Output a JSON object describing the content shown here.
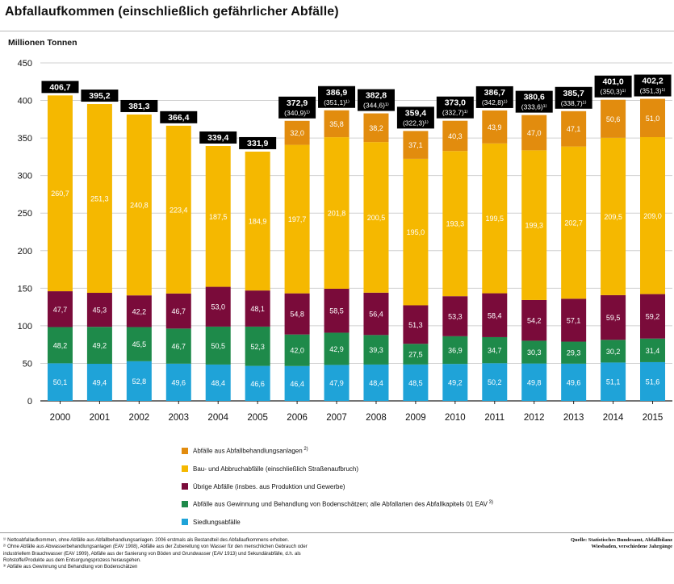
{
  "title": "Abfallaufkommen (einschließlich gefährlicher Abfälle)",
  "colors": {
    "siedlung": "#1fa3d8",
    "gewinnung": "#1e8a4a",
    "uebrige": "#7a0b3a",
    "bau": "#f5b800",
    "behandlung": "#e28c0e",
    "total_box": "#000000",
    "grid": "#d0d0d0"
  },
  "chart_data": {
    "type": "bar",
    "stacked": true,
    "ylabel": "Millionen Tonnen",
    "ylim": [
      0,
      450
    ],
    "yticks": [
      0,
      50,
      100,
      150,
      200,
      250,
      300,
      350,
      400,
      450
    ],
    "grid": true,
    "categories": [
      "2000",
      "2001",
      "2002",
      "2003",
      "2004",
      "2005",
      "2006",
      "2007",
      "2008",
      "2009",
      "2010",
      "2011",
      "2012",
      "2013",
      "2014",
      "2015"
    ],
    "series": [
      {
        "name": "Siedlungsabfälle",
        "color_key": "siedlung",
        "values": [
          50.1,
          49.4,
          52.8,
          49.6,
          48.4,
          46.6,
          46.4,
          47.9,
          48.4,
          48.5,
          49.2,
          50.2,
          49.8,
          49.6,
          51.1,
          51.6
        ],
        "labels": [
          "50,1",
          "49,4",
          "52,8",
          "49,6",
          "48,4",
          "46,6",
          "46,4",
          "47,9",
          "48,4",
          "48,5",
          "49,2",
          "50,2",
          "49,8",
          "49,6",
          "51,1",
          "51,6"
        ]
      },
      {
        "name": "Abfälle aus Gewinnung und Behandlung von Bodenschätzen; alle Abfallarten des Abfallkapitels 01 EAV",
        "color_key": "gewinnung",
        "values": [
          48.2,
          49.2,
          45.5,
          46.7,
          50.5,
          52.3,
          42.0,
          42.9,
          39.3,
          27.5,
          36.9,
          34.7,
          30.3,
          29.3,
          30.2,
          31.4
        ],
        "labels": [
          "48,2",
          "49,2",
          "45,5",
          "46,7",
          "50,5",
          "52,3",
          "42,0",
          "42,9",
          "39,3",
          "27,5",
          "36,9",
          "34,7",
          "30,3",
          "29,3",
          "30,2",
          "31,4"
        ]
      },
      {
        "name": "Übrige Abfälle (insbes. aus Produktion und Gewerbe)",
        "color_key": "uebrige",
        "values": [
          47.7,
          45.3,
          42.2,
          46.7,
          53.0,
          48.1,
          54.8,
          58.5,
          56.4,
          51.3,
          53.3,
          58.4,
          54.2,
          57.1,
          59.5,
          59.2
        ],
        "labels": [
          "47,7",
          "45,3",
          "42,2",
          "46,7",
          "53,0",
          "48,1",
          "54,8",
          "58,5",
          "56,4",
          "51,3",
          "53,3",
          "58,4",
          "54,2",
          "57,1",
          "59,5",
          "59,2"
        ]
      },
      {
        "name": "Bau- und Abbruchabfälle (einschließlich Straßenaufbruch)",
        "color_key": "bau",
        "values": [
          260.7,
          251.3,
          240.8,
          223.4,
          187.5,
          184.9,
          197.7,
          201.8,
          200.5,
          195.0,
          193.3,
          199.5,
          199.3,
          202.7,
          209.5,
          209.0
        ],
        "labels": [
          "260,7",
          "251,3",
          "240,8",
          "223,4",
          "187,5",
          "184,9",
          "197,7",
          "201,8",
          "200,5",
          "195,0",
          "193,3",
          "199,5",
          "199,3",
          "202,7",
          "209,5",
          "209,0"
        ]
      },
      {
        "name": "Abfälle aus Abfallbehandlungsanlagen",
        "color_key": "behandlung",
        "values": [
          0,
          0,
          0,
          0,
          0,
          0,
          32.0,
          35.8,
          38.2,
          37.1,
          40.3,
          43.9,
          47.0,
          47.1,
          50.6,
          51.0
        ],
        "labels": [
          "",
          "",
          "",
          "",
          "",
          "",
          "32,0",
          "35,8",
          "38,2",
          "37,1",
          "40,3",
          "43,9",
          "47,0",
          "47,1",
          "50,6",
          "51,0"
        ]
      }
    ],
    "totals": [
      406.7,
      395.2,
      381.3,
      366.4,
      339.4,
      331.9,
      372.9,
      386.9,
      382.8,
      359.4,
      373.0,
      386.7,
      380.6,
      385.7,
      401.0,
      402.2
    ],
    "total_labels": [
      "406,7",
      "395,2",
      "381,3",
      "366,4",
      "339,4",
      "331,9",
      "372,9",
      "386,9",
      "382,8",
      "359,4",
      "373,0",
      "386,7",
      "380,6",
      "385,7",
      "401,0",
      "402,2"
    ],
    "net_labels": [
      "",
      "",
      "",
      "",
      "",
      "",
      "(340,9)¹⁾",
      "(351,1)¹⁾",
      "(344,6)¹⁾",
      "(322,3)¹⁾",
      "(332,7)¹⁾",
      "(342,8)¹⁾",
      "(333,6)¹⁾",
      "(338,7)¹⁾",
      "(350,3)¹⁾",
      "(351,3)¹⁾"
    ]
  },
  "legend": [
    {
      "label": "Abfälle aus Abfallbehandlungsanlagen",
      "sup": "2)",
      "color_key": "behandlung"
    },
    {
      "label": "Bau- und Abbruchabfälle (einschließlich Straßenaufbruch)",
      "sup": "",
      "color_key": "bau"
    },
    {
      "label": "Übrige Abfälle (insbes. aus Produktion und Gewerbe)",
      "sup": "",
      "color_key": "uebrige"
    },
    {
      "label": "Abfälle aus Gewinnung und Behandlung von Bodenschätzen; alle Abfallarten des Abfallkapitels 01 EAV",
      "sup": "3)",
      "color_key": "gewinnung"
    },
    {
      "label": "Siedlungsabfälle",
      "sup": "",
      "color_key": "siedlung"
    }
  ],
  "footnotes": [
    "¹⁾ Nettoabfallaufkommen, ohne Abfälle aus Abfallbehandlungsanlagen. 2006 erstmals als Bestandteil des Abfallaufkommens erhoben.",
    "²⁾ Ohne Abfälle aus Abwasserbehandlungsanlagen (EAV 1908), Abfälle aus der Zubereitung von Wasser für den menschlichen Gebrauch oder",
    "industriellem Brauchwasser (EAV 1909), Abfälle aus der Sanierung von Böden und Grundwasser (EAV 1913) und Sekundärabfälle, d.h. als",
    "Rohstoffe/Produkte aus dem Entsorgungsprozess herausgehen.",
    "³⁾ Abfälle aus Gewinnung und Behandlung von Bodenschätzen"
  ],
  "source": [
    "Quelle: Statistisches Bundesamt, Abfallbilanz",
    "Wiesbaden, verschiedene Jahrgänge"
  ]
}
